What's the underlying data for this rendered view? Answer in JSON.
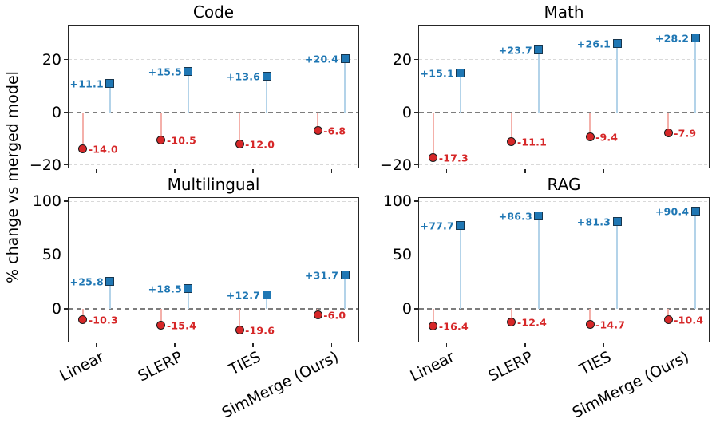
{
  "figure": {
    "ylabel": "% change vs merged model"
  },
  "style": {
    "positive_color": "#1f77b4",
    "positive_edge": "#17364e",
    "positive_stem": "#b3d3e9",
    "negative_color": "#d62728",
    "negative_edge": "#1a1a1a",
    "negative_stem": "#f4b0aa",
    "grid_color": "#d9d9d9",
    "zero_line_color": "#7d7d7d",
    "axis_color": "#262626"
  },
  "chart_data": [
    {
      "type": "stem",
      "title": "Code",
      "categories": [
        "Linear",
        "SLERP",
        "TIES",
        "SimMerge (Ours)"
      ],
      "ylim": [
        -21,
        33
      ],
      "yticks": [
        {
          "value": -20,
          "label": "−20"
        },
        {
          "value": 0,
          "label": "0"
        },
        {
          "value": 20,
          "label": "20"
        }
      ],
      "zero_line": true,
      "grid": "dashed-horizontal",
      "show_x_labels": false,
      "series": [
        {
          "name": "positive change",
          "marker": "square",
          "values": [
            11.1,
            15.5,
            13.6,
            20.4
          ],
          "labels": [
            "+11.1",
            "+15.5",
            "+13.6",
            "+20.4"
          ]
        },
        {
          "name": "negative change",
          "marker": "circle",
          "values": [
            -14.0,
            -10.5,
            -12.0,
            -6.8
          ],
          "labels": [
            "-14.0",
            "-10.5",
            "-12.0",
            "-6.8"
          ]
        }
      ]
    },
    {
      "type": "stem",
      "title": "Math",
      "categories": [
        "Linear",
        "SLERP",
        "TIES",
        "SimMerge (Ours)"
      ],
      "ylim": [
        -21,
        33
      ],
      "yticks": [
        {
          "value": -20,
          "label": "−20"
        },
        {
          "value": 0,
          "label": "0"
        },
        {
          "value": 20,
          "label": "20"
        }
      ],
      "zero_line": true,
      "grid": "dashed-horizontal",
      "show_x_labels": false,
      "series": [
        {
          "name": "positive change",
          "marker": "square",
          "values": [
            15.1,
            23.7,
            26.1,
            28.2
          ],
          "labels": [
            "+15.1",
            "+23.7",
            "+26.1",
            "+28.2"
          ]
        },
        {
          "name": "negative change",
          "marker": "circle",
          "values": [
            -17.3,
            -11.1,
            -9.4,
            -7.9
          ],
          "labels": [
            "-17.3",
            "-11.1",
            "-9.4",
            "-7.9"
          ]
        }
      ]
    },
    {
      "type": "stem",
      "title": "Multilingual",
      "categories": [
        "Linear",
        "SLERP",
        "TIES",
        "SimMerge (Ours)"
      ],
      "ylim": [
        -30.5,
        103
      ],
      "yticks": [
        {
          "value": 0,
          "label": "0"
        },
        {
          "value": 50,
          "label": "50"
        },
        {
          "value": 100,
          "label": "100"
        }
      ],
      "zero_line": true,
      "grid": "dashed-horizontal",
      "show_x_labels": true,
      "series": [
        {
          "name": "positive change",
          "marker": "square",
          "values": [
            25.8,
            18.5,
            12.7,
            31.7
          ],
          "labels": [
            "+25.8",
            "+18.5",
            "+12.7",
            "+31.7"
          ]
        },
        {
          "name": "negative change",
          "marker": "circle",
          "values": [
            -10.3,
            -15.4,
            -19.6,
            -6.0
          ],
          "labels": [
            "-10.3",
            "-15.4",
            "-19.6",
            "-6.0"
          ]
        }
      ]
    },
    {
      "type": "stem",
      "title": "RAG",
      "categories": [
        "Linear",
        "SLERP",
        "TIES",
        "SimMerge (Ours)"
      ],
      "ylim": [
        -30.5,
        103
      ],
      "yticks": [
        {
          "value": 0,
          "label": "0"
        },
        {
          "value": 50,
          "label": "50"
        },
        {
          "value": 100,
          "label": "100"
        }
      ],
      "zero_line": true,
      "grid": "dashed-horizontal",
      "show_x_labels": true,
      "series": [
        {
          "name": "positive change",
          "marker": "square",
          "values": [
            77.7,
            86.3,
            81.3,
            90.4
          ],
          "labels": [
            "+77.7",
            "+86.3",
            "+81.3",
            "+90.4"
          ]
        },
        {
          "name": "negative change",
          "marker": "circle",
          "values": [
            -16.4,
            -12.4,
            -14.7,
            -10.4
          ],
          "labels": [
            "-16.4",
            "-12.4",
            "-14.7",
            "-10.4"
          ]
        }
      ]
    }
  ]
}
